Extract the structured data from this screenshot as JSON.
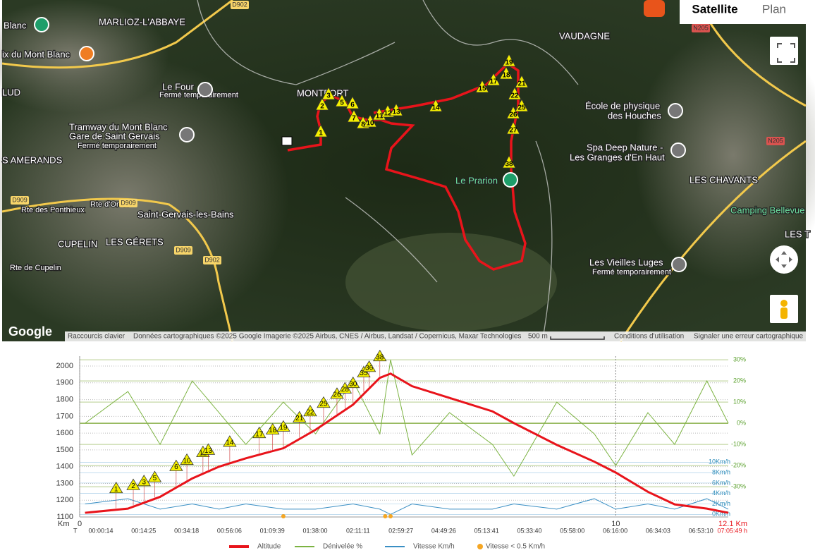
{
  "map": {
    "labels": [
      "Blanc",
      "MARLIOZ-L'ABBAYE",
      "ix du Mont Blanc",
      "LUD",
      "Le Four",
      "Fermé temporairement",
      "MONTFORT",
      "Tramway du Mont Blanc",
      "Gare de Saint Gervais",
      "Fermé temporairement",
      "S AMERANDS",
      "Rte des Ponthieux",
      "Rte d'Orsin",
      "Saint-Gervais-les-Bains",
      "CUPELIN",
      "LES GÉRETS",
      "Rte de Cupelin",
      "VAUDAGNE",
      "École de physique",
      "des Houches",
      "Spa Deep Nature -",
      "Les Granges d'En Haut",
      "LES CHAVANTS",
      "Le Prarion",
      "Camping Bellevue",
      "LES T",
      "Les Vieilles Luges",
      "Fermé temporairement"
    ],
    "roads": [
      "D902",
      "D909",
      "D909",
      "D909",
      "D902",
      "N205",
      "N205"
    ],
    "waypoints": [
      "1",
      "2",
      "3",
      "5",
      "6",
      "7",
      "8",
      "10",
      "11",
      "12",
      "13",
      "14",
      "15",
      "17",
      "18",
      "19",
      "21",
      "22",
      "25",
      "26",
      "27",
      "38"
    ],
    "buttons": {
      "satellite": "Satellite",
      "plan": "Plan"
    },
    "logo": "Google",
    "attribution": [
      "Raccourcis clavier",
      "Données cartographiques ©2025 Google Imagerie ©2025 Airbus, CNES / Airbus, Landsat / Copernicus, Maxar Technologies",
      "500 m",
      "Conditions d'utilisation",
      "Signaler une erreur cartographique"
    ]
  },
  "chart_data": {
    "type": "line",
    "x_label": "Km",
    "time_label": "T",
    "x": [
      0.1,
      0.9,
      1.5,
      2.1,
      2.6,
      3.1,
      3.8,
      4.4,
      5.1,
      5.6,
      5.8,
      6.2,
      6.9,
      7.7,
      8.1,
      8.9,
      9.6,
      10,
      10.6,
      11.1,
      11.7,
      12.1
    ],
    "xlim": [
      0,
      12.1
    ],
    "xticks": [
      0,
      10
    ],
    "ylim": [
      1100,
      2059
    ],
    "yticks": [
      1100,
      1200,
      1300,
      1400,
      1500,
      1600,
      1700,
      1800,
      1900,
      2000
    ],
    "y2lim": [
      -44.3,
      31.7
    ],
    "y2ticks": [
      {
        "value": 30,
        "label": "30%"
      },
      {
        "value": 20,
        "label": "20%"
      },
      {
        "value": 10,
        "label": "10%"
      },
      {
        "value": 0,
        "label": "0%"
      },
      {
        "value": -10,
        "label": "-10%"
      },
      {
        "value": -20,
        "label": "-20%"
      },
      {
        "value": -30,
        "label": "-30%"
      }
    ],
    "y3lim": [
      -0.5,
      30.3
    ],
    "y3ticks": [
      {
        "value": 10,
        "label": "10Km/h"
      },
      {
        "value": 8,
        "label": "8Km/h"
      },
      {
        "value": 6,
        "label": "6Km/h"
      },
      {
        "value": 4,
        "label": "4Km/h"
      },
      {
        "value": 2,
        "label": "2Km/h"
      },
      {
        "value": 0,
        "label": "0Km/h"
      }
    ],
    "series": [
      {
        "name": "Altitude",
        "color": "#e8141b",
        "values": [
          1125,
          1150,
          1220,
          1330,
          1400,
          1450,
          1510,
          1620,
          1770,
          1930,
          1955,
          1880,
          1810,
          1730,
          1660,
          1530,
          1430,
          1365,
          1250,
          1175,
          1150,
          1125
        ]
      },
      {
        "name": "Dénivelée %",
        "color": "#7cb342",
        "axis": "y2",
        "values": [
          0,
          15,
          -10,
          20,
          5,
          -10,
          10,
          -5,
          20,
          -5,
          30,
          -15,
          5,
          -10,
          -25,
          10,
          -5,
          -20,
          5,
          -10,
          20,
          0
        ]
      },
      {
        "name": "Vitesse Km/h",
        "color": "#3a8fc4",
        "axis": "y3",
        "values": [
          2,
          3,
          1,
          2,
          1,
          2,
          1,
          1,
          2,
          1,
          0,
          2,
          1,
          1,
          2,
          1,
          3,
          1,
          2,
          1,
          3,
          1
        ]
      }
    ],
    "stops": {
      "name": "Vitesse < 0.5 Km/h",
      "color": "#f5a623",
      "x": [
        3.8,
        5.7,
        5.8
      ]
    },
    "waypoints": {
      "labels": [
        "1",
        "2",
        "3",
        "5",
        "6",
        "10",
        "12",
        "13",
        "14",
        "17",
        "18",
        "19",
        "21",
        "22",
        "25",
        "26",
        "28",
        "30",
        "35",
        "36",
        "38"
      ],
      "x": [
        0.68,
        1.0,
        1.2,
        1.4,
        1.8,
        2.0,
        2.3,
        2.4,
        2.8,
        3.35,
        3.6,
        3.8,
        4.1,
        4.3,
        4.55,
        4.8,
        4.95,
        5.1,
        5.3,
        5.4,
        5.6
      ]
    },
    "times": [
      "00:00:14",
      "00:14:25",
      "00:34:18",
      "00:56:06",
      "01:09:39",
      "01:38:00",
      "02:11:11",
      "02:59:27",
      "04:49:26",
      "05:13:41",
      "05:33:40",
      "05:58:00",
      "06:16:00",
      "06:34:03",
      "06:53:10"
    ],
    "total_distance": "12.1 Km",
    "total_time": "07:05:49 h",
    "grid": true
  }
}
